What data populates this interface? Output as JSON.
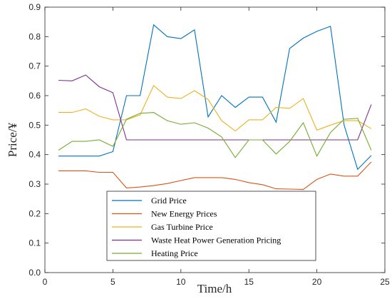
{
  "chart_data": {
    "type": "line",
    "title": "",
    "xlabel": "Time/h",
    "ylabel": "Price/¥",
    "xlim": [
      0,
      25
    ],
    "ylim": [
      0,
      0.9
    ],
    "xticks": [
      0,
      5,
      10,
      15,
      20,
      25
    ],
    "yticks": [
      0,
      0.1,
      0.2,
      0.3,
      0.4,
      0.5,
      0.6,
      0.7,
      0.8,
      0.9
    ],
    "grid": false,
    "legend_position": "lower-center",
    "x": [
      1,
      2,
      3,
      4,
      5,
      6,
      7,
      8,
      9,
      10,
      11,
      12,
      13,
      14,
      15,
      16,
      17,
      18,
      19,
      20,
      21,
      22,
      23,
      24
    ],
    "series": [
      {
        "name": "Grid Price",
        "color": "#0072BD",
        "values": [
          0.395,
          0.395,
          0.395,
          0.395,
          0.41,
          0.6,
          0.6,
          0.84,
          0.8,
          0.793,
          0.823,
          0.528,
          0.6,
          0.56,
          0.595,
          0.595,
          0.51,
          0.76,
          0.795,
          0.818,
          0.835,
          0.5,
          0.35,
          0.397
        ]
      },
      {
        "name": "New Energy Prices",
        "color": "#D95319",
        "values": [
          0.345,
          0.345,
          0.345,
          0.34,
          0.34,
          0.287,
          0.29,
          0.295,
          0.302,
          0.312,
          0.322,
          0.322,
          0.322,
          0.316,
          0.305,
          0.298,
          0.284,
          0.283,
          0.282,
          0.316,
          0.334,
          0.327,
          0.327,
          0.375
        ]
      },
      {
        "name": "Gas Turbine Price",
        "color": "#EDB120",
        "values": [
          0.543,
          0.543,
          0.555,
          0.53,
          0.518,
          0.518,
          0.535,
          0.634,
          0.595,
          0.59,
          0.617,
          0.587,
          0.515,
          0.48,
          0.518,
          0.518,
          0.56,
          0.557,
          0.59,
          0.483,
          0.5,
          0.515,
          0.515,
          0.488
        ]
      },
      {
        "name": "Waste Heat Power Generation Pricing",
        "color": "#7E2F8E",
        "values": [
          0.652,
          0.65,
          0.67,
          0.63,
          0.61,
          0.45,
          0.45,
          0.45,
          0.45,
          0.45,
          0.45,
          0.45,
          0.45,
          0.45,
          0.45,
          0.45,
          0.45,
          0.45,
          0.45,
          0.45,
          0.45,
          0.45,
          0.45,
          0.57
        ]
      },
      {
        "name": "Heating Price",
        "color": "#77AC30",
        "values": [
          0.415,
          0.445,
          0.445,
          0.45,
          0.428,
          0.52,
          0.54,
          0.543,
          0.515,
          0.503,
          0.508,
          0.49,
          0.46,
          0.39,
          0.45,
          0.45,
          0.402,
          0.445,
          0.508,
          0.395,
          0.475,
          0.52,
          0.523,
          0.415
        ]
      }
    ]
  }
}
